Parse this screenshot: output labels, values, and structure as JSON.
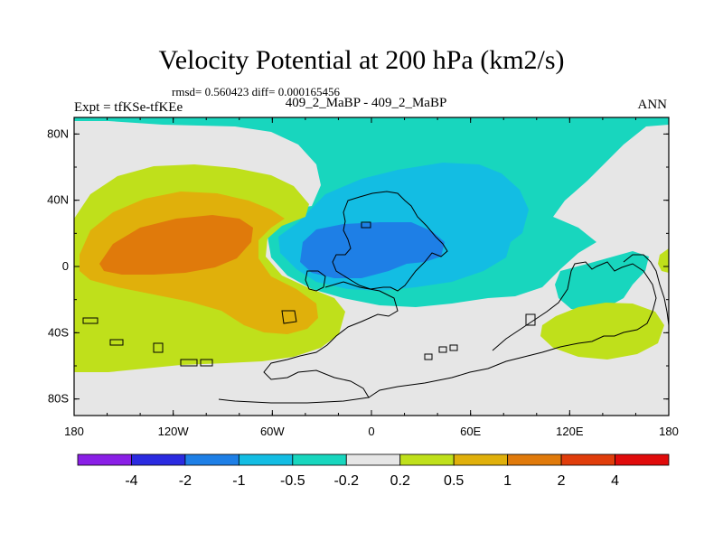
{
  "chart_data": {
    "type": "contour-map",
    "title": "Velocity Potential at 200 hPa (km2/s)",
    "subtitle": "rmsd= 0.560423 diff= 0.000165456",
    "left_string": "Expt = tfKSe-tfKEe",
    "center_string": "409_2_MaBP - 409_2_MaBP",
    "right_string": "ANN",
    "x_ticks": [
      "180",
      "120W",
      "60W",
      "0",
      "60E",
      "120E",
      "180"
    ],
    "y_ticks": [
      "80N",
      "40N",
      "0",
      "40S",
      "80S"
    ],
    "xlim": [
      -180,
      180
    ],
    "ylim": [
      -90,
      90
    ],
    "colorbar": {
      "labels": [
        "-4",
        "-2",
        "-1",
        "-0.5",
        "-0.2",
        "0.2",
        "0.5",
        "1",
        "2",
        "4"
      ],
      "colors": [
        "#8a1fe6",
        "#2b2be0",
        "#1e7fe6",
        "#13bde3",
        "#18d6be",
        "#e6e6e6",
        "#bfe01b",
        "#e0b00b",
        "#e07a0b",
        "#e03d0b",
        "#e00b0b"
      ]
    },
    "regions": [
      {
        "name": "west-pacific-positive",
        "level": "0.2 to 0.5",
        "color": "#bfe01b"
      },
      {
        "name": "west-pacific-medium",
        "level": "0.5 to 1",
        "color": "#e0b00b"
      },
      {
        "name": "west-pacific-core",
        "level": "1 to 2",
        "color": "#e07a0b"
      },
      {
        "name": "atlantic-africa-negative",
        "level": "-0.5 to -0.2",
        "color": "#18d6be"
      },
      {
        "name": "africa-asia-medium",
        "level": "-1 to -0.5",
        "color": "#13bde3"
      },
      {
        "name": "africa-asia-core",
        "level": "-2 to -1",
        "color": "#1e7fe6"
      },
      {
        "name": "indian-ocean-positive",
        "level": "0.2 to 0.5",
        "color": "#bfe01b"
      }
    ]
  }
}
